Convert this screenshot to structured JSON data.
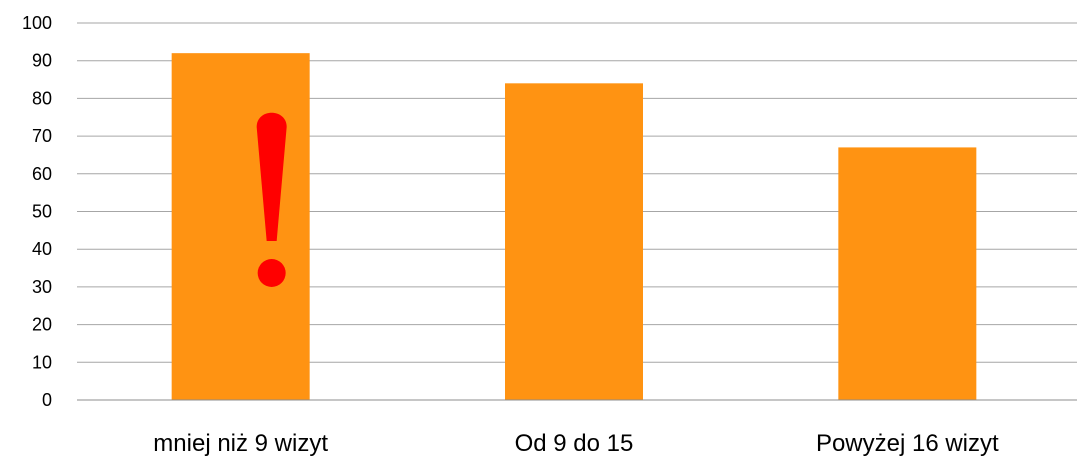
{
  "chart_data": {
    "type": "bar",
    "categories": [
      "mniej niż 9 wizyt",
      "Od 9 do 15",
      "Powyżej 16 wizyt"
    ],
    "values": [
      92,
      84,
      67
    ],
    "ylim": [
      0,
      100
    ],
    "yticks": [
      0,
      10,
      20,
      30,
      40,
      50,
      60,
      70,
      80,
      90,
      100
    ],
    "grid": true,
    "legend": "none",
    "bar_color": "#ff9312",
    "annotation": {
      "symbol": "exclamation-mark",
      "color": "#ff0000",
      "on_category": "mniej niż 9 wizyt"
    }
  }
}
